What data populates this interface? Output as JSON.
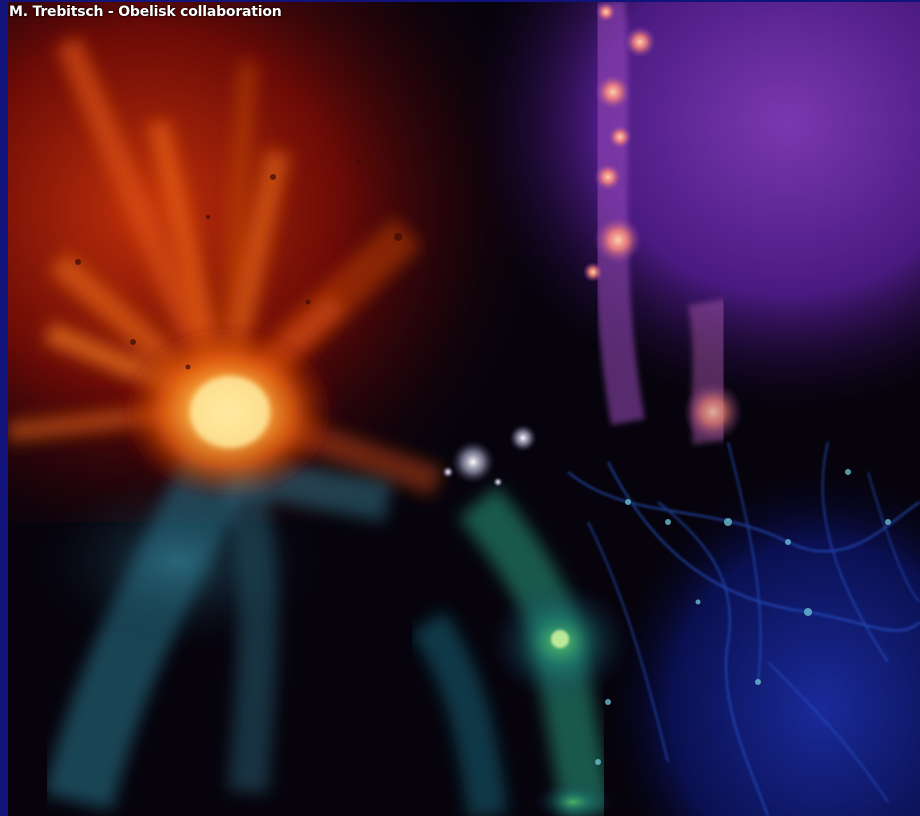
{
  "image": {
    "credit_text": "M. Trebitsch - Obelisk collaboration"
  },
  "colors": {
    "border": "#11137a",
    "gas_hot": "#ffd070",
    "gas_warm": "#e0500a",
    "gas_red": "#7a0a08",
    "metal_violet": "#6a2a9a",
    "metal_pink": "#ff9a8a",
    "dm_blue": "#1a2a9a",
    "dm_green": "#40c060",
    "stars_white": "#e8e8ff"
  }
}
